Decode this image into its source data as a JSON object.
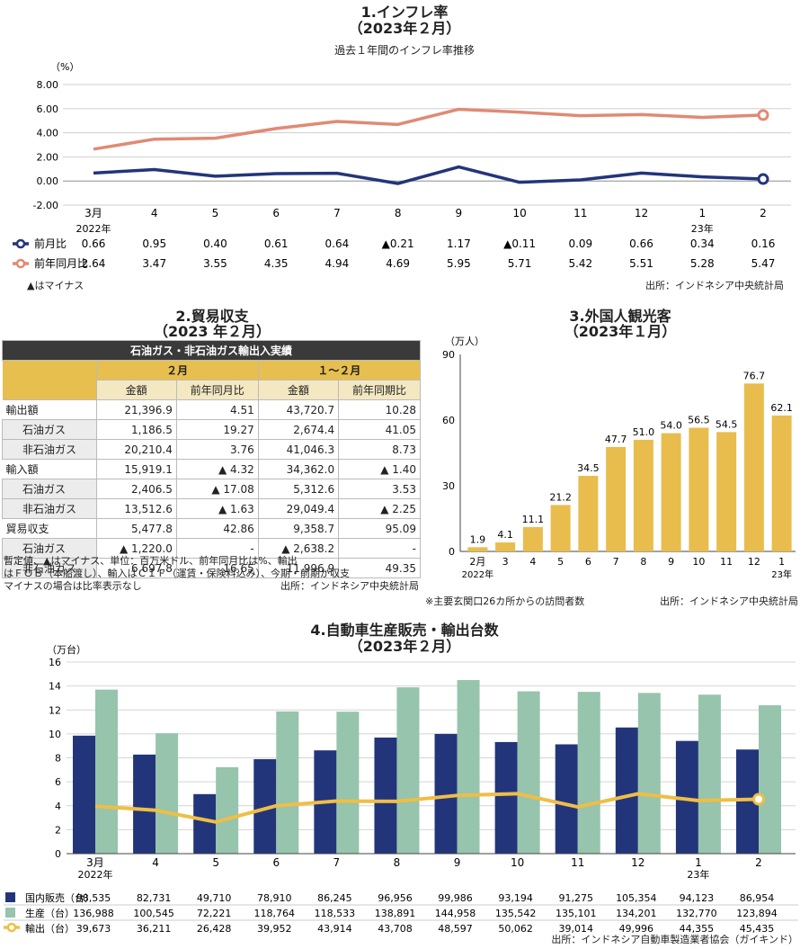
{
  "inflation": {
    "title": "1.インフレ率",
    "subtitle": "（2023年２月）",
    "caption": "過去１年間のインフレ率推移",
    "unit": "（%）",
    "source": "出所：インドネシア中央統計局",
    "legend_note": "▲はマイナス",
    "colors": {
      "mom": "#23357a",
      "yoy": "#e08a74"
    },
    "chart_data": {
      "type": "line",
      "categories": [
        "3月",
        "4",
        "5",
        "6",
        "7",
        "8",
        "9",
        "10",
        "11",
        "12",
        "1",
        "2"
      ],
      "year_labels": {
        "0": "2022年",
        "10": "23年"
      },
      "ylim": [
        -2,
        8
      ],
      "yticks": [
        "8.00",
        "6.00",
        "4.00",
        "2.00",
        "0.00",
        "-2.00"
      ],
      "series": [
        {
          "name": "前月比",
          "values": [
            0.66,
            0.95,
            0.4,
            0.61,
            0.64,
            -0.21,
            1.17,
            -0.11,
            0.09,
            0.66,
            0.34,
            0.16
          ],
          "labels": [
            "0.66",
            "0.95",
            "0.40",
            "0.61",
            "0.64",
            "▲0.21",
            "1.17",
            "▲0.11",
            "0.09",
            "0.66",
            "0.34",
            "0.16"
          ]
        },
        {
          "name": "前年同月比",
          "values": [
            2.64,
            3.47,
            3.55,
            4.35,
            4.94,
            4.69,
            5.95,
            5.71,
            5.42,
            5.51,
            5.28,
            5.47
          ],
          "labels": [
            "2.64",
            "3.47",
            "3.55",
            "4.35",
            "4.94",
            "4.69",
            "5.95",
            "5.71",
            "5.42",
            "5.51",
            "5.28",
            "5.47"
          ]
        }
      ]
    }
  },
  "trade": {
    "title": "2.貿易収支",
    "subtitle": "（2023 年２月）",
    "header": "石油ガス・非石油ガス輸出入実績",
    "period1": "２月",
    "period2": "１～２月",
    "col_amount": "金額",
    "col_yoy1": "前年同月比",
    "col_yoy2": "前年同期比",
    "rows": [
      {
        "label": "輸出額",
        "sub": false,
        "c1": "21,396.9",
        "c2": "4.51",
        "c3": "43,720.7",
        "c4": "10.28"
      },
      {
        "label": "石油ガス",
        "sub": true,
        "c1": "1,186.5",
        "c2": "19.27",
        "c3": "2,674.4",
        "c4": "41.05"
      },
      {
        "label": "非石油ガス",
        "sub": true,
        "c1": "20,210.4",
        "c2": "3.76",
        "c3": "41,046.3",
        "c4": "8.73"
      },
      {
        "label": "輸入額",
        "sub": false,
        "c1": "15,919.1",
        "c2": "▲ 4.32",
        "c3": "34,362.0",
        "c4": "▲ 1.40"
      },
      {
        "label": "石油ガス",
        "sub": true,
        "c1": "2,406.5",
        "c2": "▲ 17.08",
        "c3": "5,312.6",
        "c4": "3.53"
      },
      {
        "label": "非石油ガス",
        "sub": true,
        "c1": "13,512.6",
        "c2": "▲ 1.63",
        "c3": "29,049.4",
        "c4": "▲ 2.25"
      },
      {
        "label": "貿易収支",
        "sub": false,
        "c1": "5,477.8",
        "c2": "42.86",
        "c3": "9,358.7",
        "c4": "95.09"
      },
      {
        "label": "石油ガス",
        "sub": true,
        "c1": "▲ 1,220.0",
        "c2": "-",
        "c3": "▲ 2,638.2",
        "c4": "-"
      },
      {
        "label": "非石油ガス",
        "sub": true,
        "c1": "6,697.8",
        "c2": "16.65",
        "c3": "11,996.9",
        "c4": "49.35"
      }
    ],
    "note1": "暫定値、▲はマイナス、単位：百万米ドル、前年同月比は%、輸出",
    "note2": "はＦＯＢ（本船渡し）、輸入はＣＩＦ（運賃・保険料込み）、今期・前期が収支",
    "note3": "マイナスの場合は比率表示なし",
    "source": "出所：インドネシア中央統計局"
  },
  "tourism": {
    "title": "3.外国人観光客",
    "subtitle": "（2023年１月）",
    "unit": "（万人）",
    "footnote": "※主要玄関口26カ所からの訪問者数",
    "source": "出所：インドネシア中央統計局",
    "bar_color": "#e8bd4d",
    "chart_data": {
      "type": "bar",
      "categories": [
        "2月",
        "3",
        "4",
        "5",
        "6",
        "7",
        "8",
        "9",
        "10",
        "11",
        "12",
        "1"
      ],
      "year_labels": {
        "0": "2022年",
        "11": "23年"
      },
      "values": [
        1.9,
        4.1,
        11.1,
        21.2,
        34.5,
        47.7,
        51.0,
        54.0,
        56.5,
        54.5,
        76.7,
        62.1
      ],
      "ylim": [
        0,
        90
      ],
      "yticks": [
        "0",
        "30",
        "60",
        "90"
      ]
    }
  },
  "auto": {
    "title": "4.自動車生産販売・輸出台数",
    "subtitle": "（2023年２月）",
    "unit": "（万台）",
    "source": "出所：インドネシア自動車製造業者協会（ガイキンド）",
    "colors": {
      "domestic": "#23357a",
      "production": "#96c4ad",
      "export": "#efbe45"
    },
    "chart_data": {
      "type": "bar",
      "categories": [
        "3月",
        "4",
        "5",
        "6",
        "7",
        "8",
        "9",
        "10",
        "11",
        "12",
        "1",
        "2"
      ],
      "year_labels": {
        "0": "2022年",
        "10": "23年"
      },
      "ylim": [
        0,
        16
      ],
      "yticks": [
        "0",
        "2",
        "4",
        "6",
        "8",
        "10",
        "12",
        "14",
        "16"
      ],
      "series": [
        {
          "name": "国内販売（台）",
          "kind": "bar",
          "values": [
            98535,
            82731,
            49710,
            78910,
            86245,
            96956,
            99986,
            93194,
            91275,
            105354,
            94123,
            86954
          ],
          "labels": [
            "98,535",
            "82,731",
            "49,710",
            "78,910",
            "86,245",
            "96,956",
            "99,986",
            "93,194",
            "91,275",
            "105,354",
            "94,123",
            "86,954"
          ]
        },
        {
          "name": "生産（台）",
          "kind": "bar",
          "values": [
            136988,
            100545,
            72221,
            118764,
            118533,
            138891,
            144958,
            135542,
            135101,
            134201,
            132770,
            123894
          ],
          "labels": [
            "136,988",
            "100,545",
            "72,221",
            "118,764",
            "118,533",
            "138,891",
            "144,958",
            "135,542",
            "135,101",
            "134,201",
            "132,770",
            "123,894"
          ]
        },
        {
          "name": "輸出（台）",
          "kind": "line",
          "values": [
            39673,
            36211,
            26428,
            39952,
            43914,
            43708,
            48597,
            50062,
            39014,
            49996,
            44355,
            45435
          ],
          "labels": [
            "39,673",
            "36,211",
            "26,428",
            "39,952",
            "43,914",
            "43,708",
            "48,597",
            "50,062",
            "39,014",
            "49,996",
            "44,355",
            "45,435"
          ]
        }
      ]
    }
  }
}
